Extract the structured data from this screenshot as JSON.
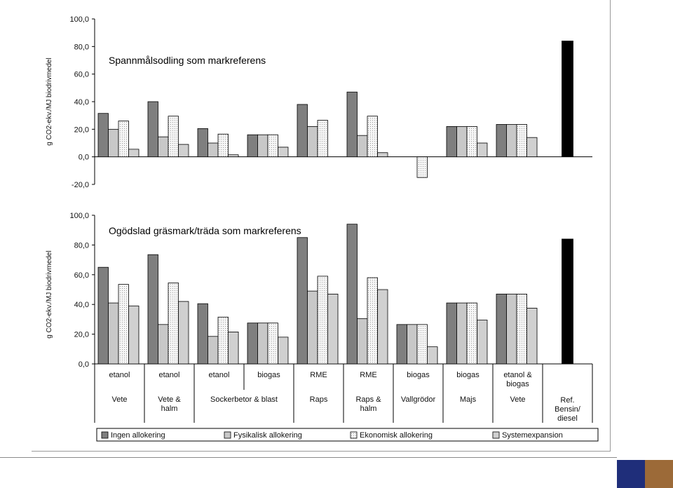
{
  "colors": {
    "ingen": "#7f7f7f",
    "fysikalisk": "#c8c8c8",
    "ekonomisk": "#eeeeee",
    "system": "#dcdcdc",
    "reference": "#000000",
    "corner_blue": "#1f2e7a",
    "corner_brown": "#9c6a38"
  },
  "chart_data": [
    {
      "type": "bar",
      "title": "Spannmålsodling som markreferens",
      "ylabel": "g CO2-ekv./MJ biodrivmedel",
      "ylim": [
        -20,
        100
      ],
      "yticks": [
        "-20,0",
        "0,0",
        "20,0",
        "40,0",
        "60,0",
        "80,0",
        "100,0"
      ],
      "grid": false,
      "series": [
        {
          "name": "Ingen allokering",
          "values": [
            31.5,
            40,
            20.5,
            16,
            38,
            47,
            null,
            22,
            23.5,
            null
          ]
        },
        {
          "name": "Fysikalisk allokering",
          "values": [
            20,
            14.5,
            10,
            16,
            22,
            15.5,
            null,
            22,
            23.5,
            null
          ]
        },
        {
          "name": "Ekonomisk allokering",
          "values": [
            26,
            29.5,
            16.5,
            16,
            26.5,
            29.5,
            -15,
            22,
            23.5,
            null
          ]
        },
        {
          "name": "Systemexpansion",
          "values": [
            5.5,
            9,
            1.5,
            7,
            null,
            3,
            null,
            10,
            14,
            null
          ]
        },
        {
          "name": "Ref.",
          "values": [
            null,
            null,
            null,
            null,
            null,
            null,
            null,
            null,
            null,
            84
          ]
        }
      ]
    },
    {
      "type": "bar",
      "title": "Ogödslad gräsmark/träda som markreferens",
      "ylabel": "g CO2-ekv./MJ biodrivmedel",
      "ylim": [
        0,
        100
      ],
      "yticks": [
        "0,0",
        "20,0",
        "40,0",
        "60,0",
        "80,0",
        "100,0"
      ],
      "grid": false,
      "series": [
        {
          "name": "Ingen allokering",
          "values": [
            65,
            73.5,
            40.5,
            27.5,
            85,
            94,
            26.5,
            41,
            47,
            null
          ]
        },
        {
          "name": "Fysikalisk allokering",
          "values": [
            41,
            26.5,
            18.5,
            27.5,
            49,
            30.5,
            26.5,
            41,
            47,
            null
          ]
        },
        {
          "name": "Ekonomisk allokering",
          "values": [
            53.5,
            54.5,
            31.5,
            27.5,
            59,
            58,
            26.5,
            41,
            47,
            null
          ]
        },
        {
          "name": "Systemexpansion",
          "values": [
            39,
            42,
            21.5,
            18,
            47,
            50,
            11.5,
            29.5,
            37.5,
            null
          ]
        },
        {
          "name": "Ref.",
          "values": [
            null,
            null,
            null,
            null,
            null,
            null,
            null,
            null,
            null,
            84
          ]
        }
      ]
    }
  ],
  "categories_row1": [
    "etanol",
    "etanol",
    "etanol",
    "biogas",
    "RME",
    "RME",
    "biogas",
    "biogas",
    "etanol &\nbiogas",
    ""
  ],
  "categories_row2": [
    "Vete",
    "Vete &\nhalm",
    "Sockerbetor & blast",
    "",
    "Raps",
    "Raps &\nhalm",
    "Vallgrödor",
    "Majs",
    "Vete",
    "Ref.\nBensin/\ndiesel"
  ],
  "legend": [
    {
      "key": "ingen",
      "label": "Ingen allokering"
    },
    {
      "key": "fysikalisk",
      "label": "Fysikalisk allokering"
    },
    {
      "key": "ekonomisk",
      "label": "Ekonomisk allokering"
    },
    {
      "key": "system",
      "label": "Systemexpansion"
    }
  ]
}
